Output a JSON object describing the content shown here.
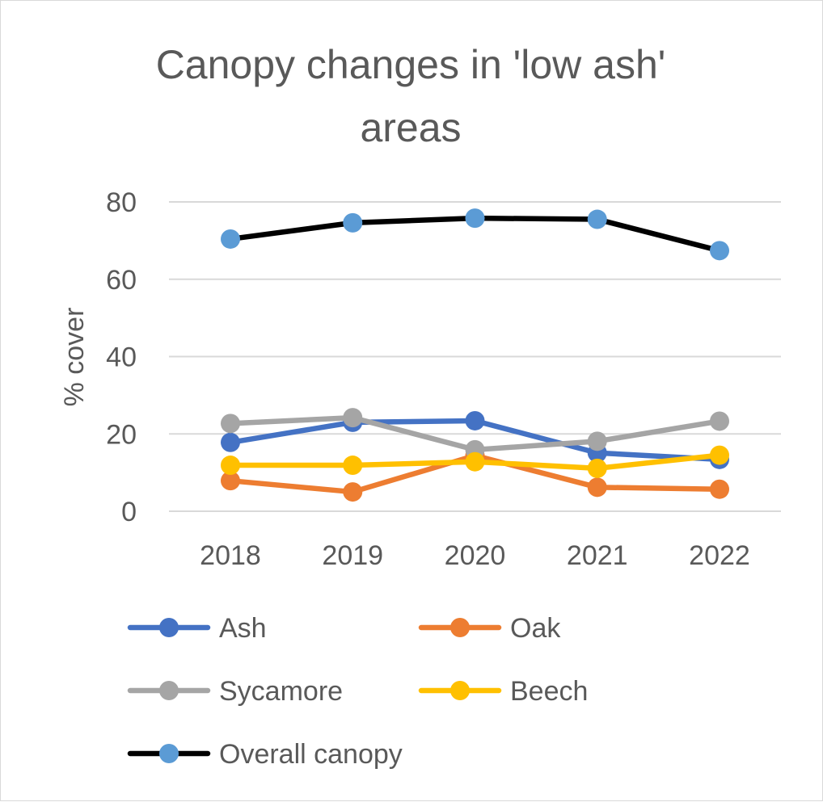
{
  "chart_data": {
    "type": "line",
    "title_lines": [
      "Canopy changes in 'low ash'",
      "areas"
    ],
    "xlabel": "",
    "ylabel": "% cover",
    "categories": [
      "2018",
      "2019",
      "2020",
      "2021",
      "2022"
    ],
    "ylim": [
      0,
      80
    ],
    "yticks": [
      "0",
      "20",
      "40",
      "60",
      "80"
    ],
    "grid": true,
    "legend_position": "bottom",
    "series": [
      {
        "name": "Ash",
        "values": [
          17.8,
          23.0,
          23.4,
          15.1,
          13.4
        ],
        "line_color": "#4472c4",
        "marker_color": "#4472c4"
      },
      {
        "name": "Oak",
        "values": [
          7.9,
          5.0,
          14.4,
          6.2,
          5.7
        ],
        "line_color": "#ed7d31",
        "marker_color": "#ed7d31"
      },
      {
        "name": "Sycamore",
        "values": [
          22.7,
          24.2,
          15.9,
          18.1,
          23.3
        ],
        "line_color": "#a5a5a5",
        "marker_color": "#a5a5a5"
      },
      {
        "name": "Beech",
        "values": [
          11.9,
          11.9,
          12.8,
          11.1,
          14.5
        ],
        "line_color": "#ffc000",
        "marker_color": "#ffc000"
      },
      {
        "name": "Overall canopy",
        "values": [
          70.4,
          74.6,
          75.8,
          75.5,
          67.4
        ],
        "line_color": "#000000",
        "marker_color": "#5b9bd5"
      }
    ]
  },
  "colors": {
    "text": "#595959",
    "gridline": "#d9d9d9",
    "border": "#d9d9d9",
    "background": "#ffffff"
  }
}
